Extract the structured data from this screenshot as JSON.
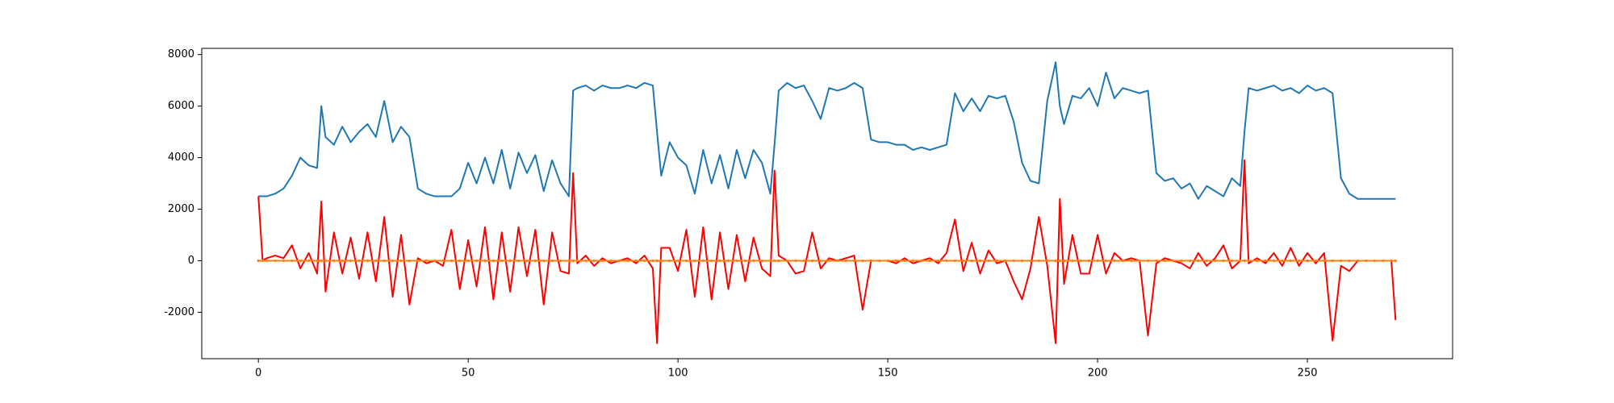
{
  "chart_data": {
    "type": "line",
    "x": [
      0,
      1,
      2,
      4,
      6,
      8,
      10,
      12,
      14,
      15,
      16,
      18,
      20,
      22,
      24,
      26,
      28,
      30,
      32,
      34,
      36,
      38,
      40,
      42,
      44,
      46,
      48,
      50,
      52,
      54,
      56,
      58,
      60,
      62,
      64,
      66,
      68,
      70,
      72,
      74,
      75,
      76,
      78,
      80,
      82,
      84,
      86,
      88,
      90,
      92,
      94,
      95,
      96,
      98,
      100,
      102,
      104,
      106,
      108,
      110,
      112,
      114,
      116,
      118,
      120,
      122,
      123,
      124,
      126,
      128,
      130,
      132,
      134,
      136,
      138,
      140,
      142,
      144,
      146,
      148,
      150,
      152,
      154,
      156,
      158,
      160,
      162,
      164,
      166,
      168,
      170,
      172,
      174,
      176,
      178,
      180,
      182,
      184,
      186,
      188,
      190,
      191,
      192,
      194,
      196,
      198,
      200,
      202,
      204,
      206,
      208,
      210,
      212,
      214,
      216,
      218,
      220,
      222,
      224,
      226,
      228,
      230,
      232,
      234,
      235,
      236,
      238,
      240,
      242,
      244,
      246,
      248,
      250,
      252,
      254,
      256,
      258,
      260,
      262,
      264,
      266,
      268,
      270,
      271
    ],
    "series": [
      {
        "color": "#1f77b4",
        "values": [
          2500,
          2500,
          2500,
          2600,
          2800,
          3300,
          4000,
          3700,
          3600,
          6000,
          4800,
          4500,
          5200,
          4600,
          5000,
          5300,
          4800,
          6200,
          4600,
          5200,
          4800,
          2800,
          2600,
          2500,
          2500,
          2500,
          2800,
          3800,
          3000,
          4000,
          3000,
          4300,
          2800,
          4200,
          3400,
          4100,
          2700,
          3900,
          3000,
          2500,
          6600,
          6700,
          6800,
          6600,
          6800,
          6700,
          6700,
          6800,
          6700,
          6900,
          6800,
          5000,
          3300,
          4600,
          4000,
          3700,
          2600,
          4300,
          3000,
          4100,
          2800,
          4300,
          3200,
          4300,
          3800,
          2600,
          4500,
          6600,
          6900,
          6700,
          6800,
          6200,
          5500,
          6700,
          6600,
          6700,
          6900,
          6700,
          4700,
          4600,
          4600,
          4500,
          4500,
          4300,
          4400,
          4300,
          4400,
          4500,
          6500,
          5800,
          6300,
          5800,
          6400,
          6300,
          6400,
          5400,
          3800,
          3100,
          3000,
          6200,
          7700,
          6000,
          5300,
          6400,
          6300,
          6700,
          6000,
          7300,
          6300,
          6700,
          6600,
          6500,
          6600,
          3400,
          3100,
          3200,
          2800,
          3000,
          2400,
          2900,
          2700,
          2500,
          3200,
          2900,
          5000,
          6700,
          6600,
          6700,
          6800,
          6600,
          6700,
          6500,
          6800,
          6600,
          6700,
          6500,
          3200,
          2600,
          2400,
          2400,
          2400,
          2400,
          2400,
          2400
        ]
      },
      {
        "color": "#ff0000",
        "values": [
          2500,
          0,
          100,
          200,
          100,
          600,
          -300,
          300,
          -500,
          2300,
          -1200,
          1100,
          -500,
          900,
          -700,
          1100,
          -800,
          1700,
          -1400,
          1000,
          -1700,
          100,
          -100,
          0,
          -200,
          1200,
          -1100,
          800,
          -1000,
          1300,
          -1500,
          1100,
          -1200,
          1300,
          -600,
          1200,
          -1700,
          1100,
          -400,
          -500,
          3400,
          -100,
          200,
          -200,
          100,
          -100,
          0,
          100,
          -100,
          200,
          -300,
          -3200,
          500,
          500,
          -400,
          1200,
          -1400,
          1300,
          -1500,
          1100,
          -1100,
          1000,
          -800,
          900,
          -300,
          -600,
          3500,
          200,
          0,
          -500,
          -400,
          1100,
          -300,
          100,
          0,
          100,
          200,
          -1900,
          0,
          0,
          0,
          -100,
          100,
          -100,
          0,
          100,
          -100,
          300,
          1600,
          -400,
          700,
          -500,
          400,
          -100,
          0,
          -800,
          -1500,
          -300,
          1700,
          -200,
          -3200,
          2400,
          -900,
          1000,
          -500,
          -500,
          1000,
          -500,
          300,
          0,
          100,
          0,
          -2900,
          -100,
          100,
          0,
          -100,
          -300,
          300,
          -200,
          100,
          600,
          -300,
          0,
          3900,
          -100,
          100,
          -100,
          300,
          -200,
          500,
          -200,
          300,
          -100,
          300,
          -3100,
          -200,
          -400,
          0,
          0,
          0,
          0,
          0,
          -2300
        ]
      },
      {
        "color": "#ff7f0e",
        "markers": true,
        "values": [
          0,
          0,
          0,
          0,
          0,
          0,
          0,
          0,
          0,
          0,
          0,
          0,
          0,
          0,
          0,
          0,
          0,
          0,
          0,
          0,
          0,
          0,
          0,
          0,
          0,
          0,
          0,
          0,
          0,
          0,
          0,
          0,
          0,
          0,
          0,
          0,
          0,
          0,
          0,
          0,
          0,
          0,
          0,
          0,
          0,
          0,
          0,
          0,
          0,
          0,
          0,
          0,
          0,
          0,
          0,
          0,
          0,
          0,
          0,
          0,
          0,
          0,
          0,
          0,
          0,
          0,
          0,
          0,
          0,
          0,
          0,
          0,
          0,
          0,
          0,
          0,
          0,
          0,
          0,
          0,
          0,
          0,
          0,
          0,
          0,
          0,
          0,
          0,
          0,
          0,
          0,
          0,
          0,
          0,
          0,
          0,
          0,
          0,
          0,
          0,
          0,
          0,
          0,
          0,
          0,
          0,
          0,
          0,
          0,
          0,
          0,
          0,
          0,
          0,
          0,
          0,
          0,
          0,
          0,
          0,
          0,
          0,
          0,
          0,
          0,
          0,
          0,
          0,
          0,
          0,
          0,
          0,
          0,
          0,
          0,
          0,
          0,
          0,
          0,
          0,
          0,
          0,
          0,
          0
        ]
      }
    ],
    "xlim": [
      -13.5,
      284.6
    ],
    "ylim": [
      -3800,
      8240
    ],
    "xticks": [
      0,
      50,
      100,
      150,
      200,
      250
    ],
    "yticks": [
      -2000,
      0,
      2000,
      4000,
      6000,
      8000
    ]
  }
}
